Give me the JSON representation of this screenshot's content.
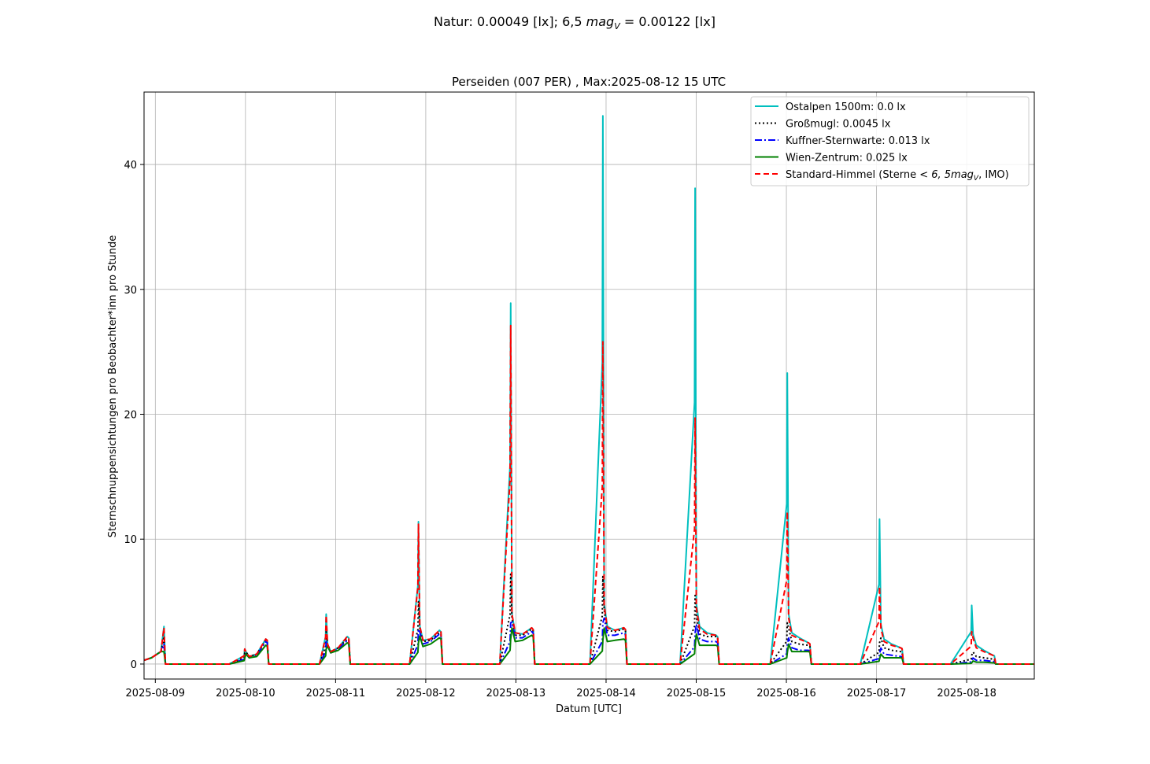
{
  "figure": {
    "suptitle": "Natur: 0.00049 [lx]; 6,5 ",
    "suptitle_math": "mag",
    "suptitle_sub": "V",
    "suptitle_rest": " = 0.00122 [lx]"
  },
  "chart_data": {
    "type": "line",
    "title": "Perseiden (007 PER) , Max:2025-08-12 15 UTC",
    "xlabel": "Datum [UTC]",
    "ylabel": "Sternschnuppensichtungen pro Beobachter*inn pro Stunde",
    "xlim": [
      "2025-08-08 21:00",
      "2025-08-18 18:00"
    ],
    "ylim": [
      -1.2,
      45.8
    ],
    "x_ticks": [
      "2025-08-09",
      "2025-08-10",
      "2025-08-11",
      "2025-08-12",
      "2025-08-13",
      "2025-08-14",
      "2025-08-15",
      "2025-08-16",
      "2025-08-17",
      "2025-08-18"
    ],
    "y_ticks": [
      0,
      10,
      20,
      30,
      40
    ],
    "grid": true,
    "legend_position": "top-right",
    "series": [
      {
        "name": "Ostalpen 1500m: 0.0 lx",
        "color": "#00bfbf",
        "style": "solid",
        "nights": [
          {
            "peak": 3.0,
            "tail": [
              1.0,
              1.0,
              2.8
            ]
          },
          {
            "peak": 1.2,
            "tail": [
              0.6,
              0.8,
              2.0
            ]
          },
          {
            "peak": 4.0,
            "tail": [
              1.0,
              1.3,
              2.2
            ]
          },
          {
            "peak": 11.4,
            "tail": [
              1.9,
              2.0,
              2.7
            ]
          },
          {
            "peak": 28.9,
            "tail": [
              2.5,
              2.4,
              2.9
            ]
          },
          {
            "peak": 43.9,
            "tail": [
              3.0,
              2.7,
              2.9
            ]
          },
          {
            "peak": 38.1,
            "tail": [
              3.0,
              2.5,
              2.3
            ]
          },
          {
            "peak": 23.3,
            "tail": [
              2.5,
              2.1,
              1.7
            ]
          },
          {
            "peak": 11.6,
            "tail": [
              2.0,
              1.6,
              1.3
            ]
          },
          {
            "peak": 4.7,
            "tail": [
              1.5,
              1.1,
              0.7
            ]
          }
        ]
      },
      {
        "name": "Großmugl: 0.0045 lx",
        "color": "#000000",
        "style": "dotted",
        "nights": [
          {
            "peak": 2.2,
            "tail": [
              1.0,
              1.0,
              2.6
            ]
          },
          {
            "peak": 0.9,
            "tail": [
              0.6,
              0.8,
              1.9
            ]
          },
          {
            "peak": 2.6,
            "tail": [
              1.0,
              1.3,
              2.0
            ]
          },
          {
            "peak": 5.0,
            "tail": [
              1.8,
              1.9,
              2.5
            ]
          },
          {
            "peak": 7.2,
            "tail": [
              2.3,
              2.3,
              2.8
            ]
          },
          {
            "peak": 7.0,
            "tail": [
              2.7,
              2.6,
              2.8
            ]
          },
          {
            "peak": 5.5,
            "tail": [
              2.4,
              2.2,
              2.2
            ]
          },
          {
            "peak": 3.3,
            "tail": [
              1.8,
              1.6,
              1.5
            ]
          },
          {
            "peak": 1.7,
            "tail": [
              1.3,
              1.1,
              1.0
            ]
          },
          {
            "peak": 0.7,
            "tail": [
              0.6,
              0.5,
              0.4
            ]
          }
        ]
      },
      {
        "name": "Kuffner-Sternwarte: 0.013 lx",
        "color": "#0000ff",
        "style": "dashdot",
        "nights": [
          {
            "peak": 1.6,
            "tail": [
              0.9,
              0.9,
              2.2
            ]
          },
          {
            "peak": 0.7,
            "tail": [
              0.5,
              0.7,
              1.8
            ]
          },
          {
            "peak": 1.8,
            "tail": [
              0.9,
              1.2,
              1.9
            ]
          },
          {
            "peak": 2.8,
            "tail": [
              1.6,
              1.8,
              2.4
            ]
          },
          {
            "peak": 3.3,
            "tail": [
              2.1,
              2.1,
              2.6
            ]
          },
          {
            "peak": 3.3,
            "tail": [
              2.3,
              2.3,
              2.5
            ]
          },
          {
            "peak": 2.5,
            "tail": [
              2.0,
              1.8,
              1.8
            ]
          },
          {
            "peak": 1.5,
            "tail": [
              1.3,
              1.1,
              1.1
            ]
          },
          {
            "peak": 0.8,
            "tail": [
              0.8,
              0.7,
              0.6
            ]
          },
          {
            "peak": 0.3,
            "tail": [
              0.3,
              0.3,
              0.2
            ]
          }
        ]
      },
      {
        "name": "Wien-Zentrum: 0.025 lx",
        "color": "#008000",
        "style": "solid",
        "nights": [
          {
            "peak": 1.0,
            "tail": [
              0.8,
              0.8,
              1.6
            ]
          },
          {
            "peak": 0.5,
            "tail": [
              0.5,
              0.6,
              1.5
            ]
          },
          {
            "peak": 1.2,
            "tail": [
              0.9,
              1.1,
              1.7
            ]
          },
          {
            "peak": 1.7,
            "tail": [
              1.4,
              1.6,
              2.1
            ]
          },
          {
            "peak": 2.0,
            "tail": [
              1.8,
              1.9,
              2.3
            ]
          },
          {
            "peak": 1.9,
            "tail": [
              1.8,
              1.9,
              2.0
            ]
          },
          {
            "peak": 1.5,
            "tail": [
              1.5,
              1.5,
              1.5
            ]
          },
          {
            "peak": 0.9,
            "tail": [
              1.0,
              1.0,
              1.0
            ]
          },
          {
            "peak": 0.4,
            "tail": [
              0.5,
              0.5,
              0.5
            ]
          },
          {
            "peak": 0.1,
            "tail": [
              0.15,
              0.15,
              0.1
            ]
          }
        ]
      },
      {
        "name": "Standard-Himmel (Sterne ",
        "name_math": "< 6, 5mag",
        "name_sub": "V",
        "name_rest": ", IMO)",
        "color": "#ff0000",
        "style": "dashed",
        "nights": [
          {
            "peak": 2.9,
            "tail": [
              1.0,
              1.0,
              2.8
            ]
          },
          {
            "peak": 1.2,
            "tail": [
              0.6,
              0.8,
              2.0
            ]
          },
          {
            "peak": 3.9,
            "tail": [
              1.0,
              1.3,
              2.2
            ]
          },
          {
            "peak": 11.2,
            "tail": [
              1.9,
              2.0,
              2.7
            ]
          },
          {
            "peak": 27.1,
            "tail": [
              2.5,
              2.4,
              2.9
            ]
          },
          {
            "peak": 25.8,
            "tail": [
              2.9,
              2.7,
              2.9
            ]
          },
          {
            "peak": 19.7,
            "tail": [
              2.8,
              2.4,
              2.3
            ]
          },
          {
            "peak": 12.2,
            "tail": [
              2.3,
              2.0,
              1.7
            ]
          },
          {
            "peak": 6.2,
            "tail": [
              1.8,
              1.5,
              1.3
            ]
          },
          {
            "peak": 2.6,
            "tail": [
              1.3,
              1.0,
              0.7
            ]
          }
        ]
      }
    ]
  }
}
